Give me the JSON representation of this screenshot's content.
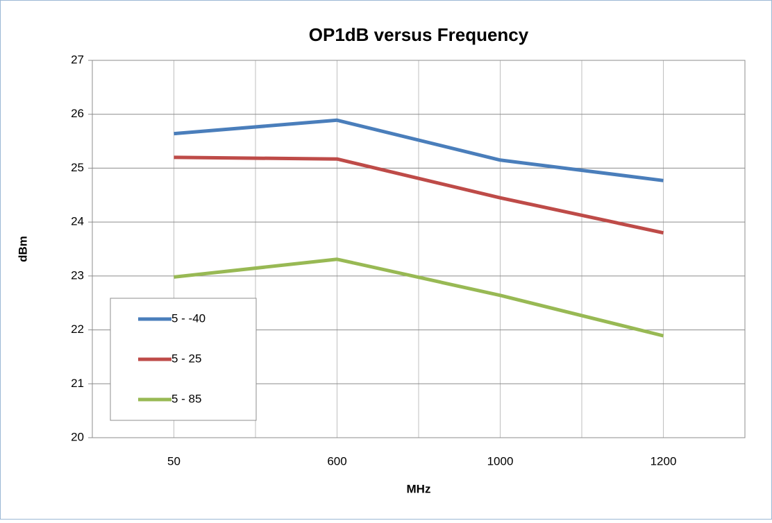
{
  "chart_data": {
    "type": "line",
    "title": "OP1dB versus Frequency",
    "x_label": "MHz",
    "y_label": "dBm",
    "categories": [
      "50",
      "600",
      "1000",
      "1200"
    ],
    "series": [
      {
        "name": "5 - -40",
        "color": "#4a7ebb",
        "values": [
          25.64,
          25.89,
          25.15,
          24.77
        ]
      },
      {
        "name": "5 - 25",
        "color": "#be4b48",
        "values": [
          25.2,
          25.17,
          24.45,
          23.8
        ]
      },
      {
        "name": "5 - 85",
        "color": "#98b954",
        "values": [
          22.98,
          23.31,
          22.64,
          21.89
        ]
      }
    ],
    "ylim": [
      20,
      27
    ],
    "yticks": [
      20,
      21,
      22,
      23,
      24,
      25,
      26,
      27
    ],
    "grid": true,
    "legend": "lower left"
  }
}
